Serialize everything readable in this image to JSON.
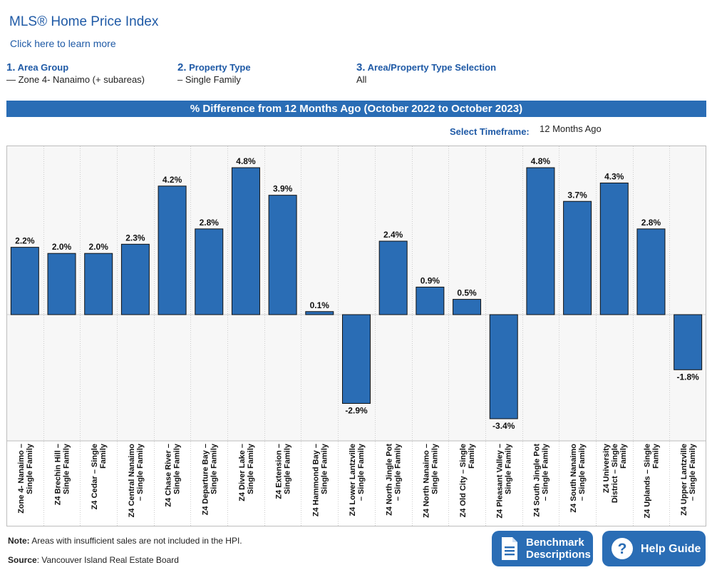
{
  "header": {
    "title": "MLS® Home Price Index",
    "learn_more": "Click here to learn more"
  },
  "steps": [
    {
      "num": "1.",
      "label": "Area Group",
      "value": "— Zone 4- Nanaimo (+ subareas)"
    },
    {
      "num": "2.",
      "label": "Property Type",
      "value": "– Single Family"
    },
    {
      "num": "3.",
      "label": "Area/Property Type Selection",
      "value": "All"
    }
  ],
  "banner": "% Difference from 12 Months Ago (October 2022 to October 2023)",
  "timeframe": {
    "label": "Select Timeframe:",
    "value": "12 Months Ago"
  },
  "chart_data": {
    "type": "bar",
    "title": "% Difference from 12 Months Ago (October 2022 to October 2023)",
    "categories": [
      [
        "Zone 4- Nanaimo –",
        "Single Family"
      ],
      [
        "Z4 Brechin Hill –",
        "Single Family"
      ],
      [
        "Z4 Cedar – Single",
        "Family"
      ],
      [
        "Z4 Central Nanaimo",
        "– Single Family"
      ],
      [
        "Z4 Chase River –",
        "Single Family"
      ],
      [
        "Z4 Departure Bay –",
        "Single Family"
      ],
      [
        "Z4 Diver Lake –",
        "Single Family"
      ],
      [
        "Z4 Extension –",
        "Single Family"
      ],
      [
        "Z4 Hammond Bay –",
        "Single Family"
      ],
      [
        "Z4 Lower Lantzville",
        "– Single Family"
      ],
      [
        "Z4 North Jingle Pot",
        "– Single Family"
      ],
      [
        "Z4 North Nanaimo –",
        "Single Family"
      ],
      [
        "Z4 Old City – Single",
        "Family"
      ],
      [
        "Z4 Pleasant Valley –",
        "Single Family"
      ],
      [
        "Z4 South Jingle Pot",
        "– Single Family"
      ],
      [
        "Z4 South Nanaimo",
        "– Single Family"
      ],
      [
        "Z4 University",
        "District – Single",
        "Family"
      ],
      [
        "Z4 Uplands – Single",
        "Family"
      ],
      [
        "Z4 Upper Lantzville",
        "– Single Family"
      ]
    ],
    "values": [
      2.2,
      2.0,
      2.0,
      2.3,
      4.2,
      2.8,
      4.8,
      3.9,
      0.1,
      -2.9,
      2.4,
      0.9,
      0.5,
      -3.4,
      4.8,
      3.7,
      4.3,
      2.8,
      -1.8
    ],
    "labels": [
      "2.2%",
      "2.0%",
      "2.0%",
      "2.3%",
      "4.2%",
      "2.8%",
      "4.8%",
      "3.9%",
      "0.1%",
      "-2.9%",
      "2.4%",
      "0.9%",
      "0.5%",
      "-3.4%",
      "4.8%",
      "3.7%",
      "4.3%",
      "2.8%",
      "-1.8%"
    ],
    "ylim": [
      -4.1,
      5.5
    ],
    "bar_color": "#2a6db5",
    "plot_bg": "#f7f7f7",
    "grid": "vertical-dotted"
  },
  "footer": {
    "note_label": "Note:",
    "note_text": " Areas with insufficient sales are not included in the HPI.",
    "source_label": "Source",
    "source_text": ": Vancouver Island Real Estate Board"
  },
  "buttons": {
    "benchmark": [
      "Benchmark",
      "Descriptions"
    ],
    "help": "Help Guide"
  },
  "colors": {
    "brand": "#2a6db5",
    "link": "#1f5aa6"
  }
}
